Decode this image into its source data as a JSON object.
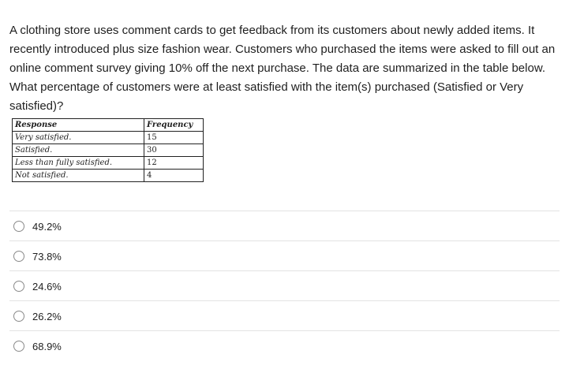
{
  "question": "A clothing store uses comment cards to get feedback from its customers about newly added items. It recently introduced plus size fashion wear. Customers who purchased the items were asked to fill out an online comment survey giving 10% off the next purchase. The data are summarized in the table below. What percentage of customers were at least satisfied with the item(s) purchased (Satisfied or Very satisfied)?",
  "table": {
    "headers": [
      "Response",
      "Frequency"
    ],
    "rows": [
      [
        "Very satisfied.",
        "15"
      ],
      [
        "Satisfied.",
        "30"
      ],
      [
        "Less than fully satisfied.",
        "12"
      ],
      [
        "Not satisfied.",
        "4"
      ]
    ]
  },
  "options": [
    "49.2%",
    "73.8%",
    "24.6%",
    "26.2%",
    "68.9%"
  ]
}
